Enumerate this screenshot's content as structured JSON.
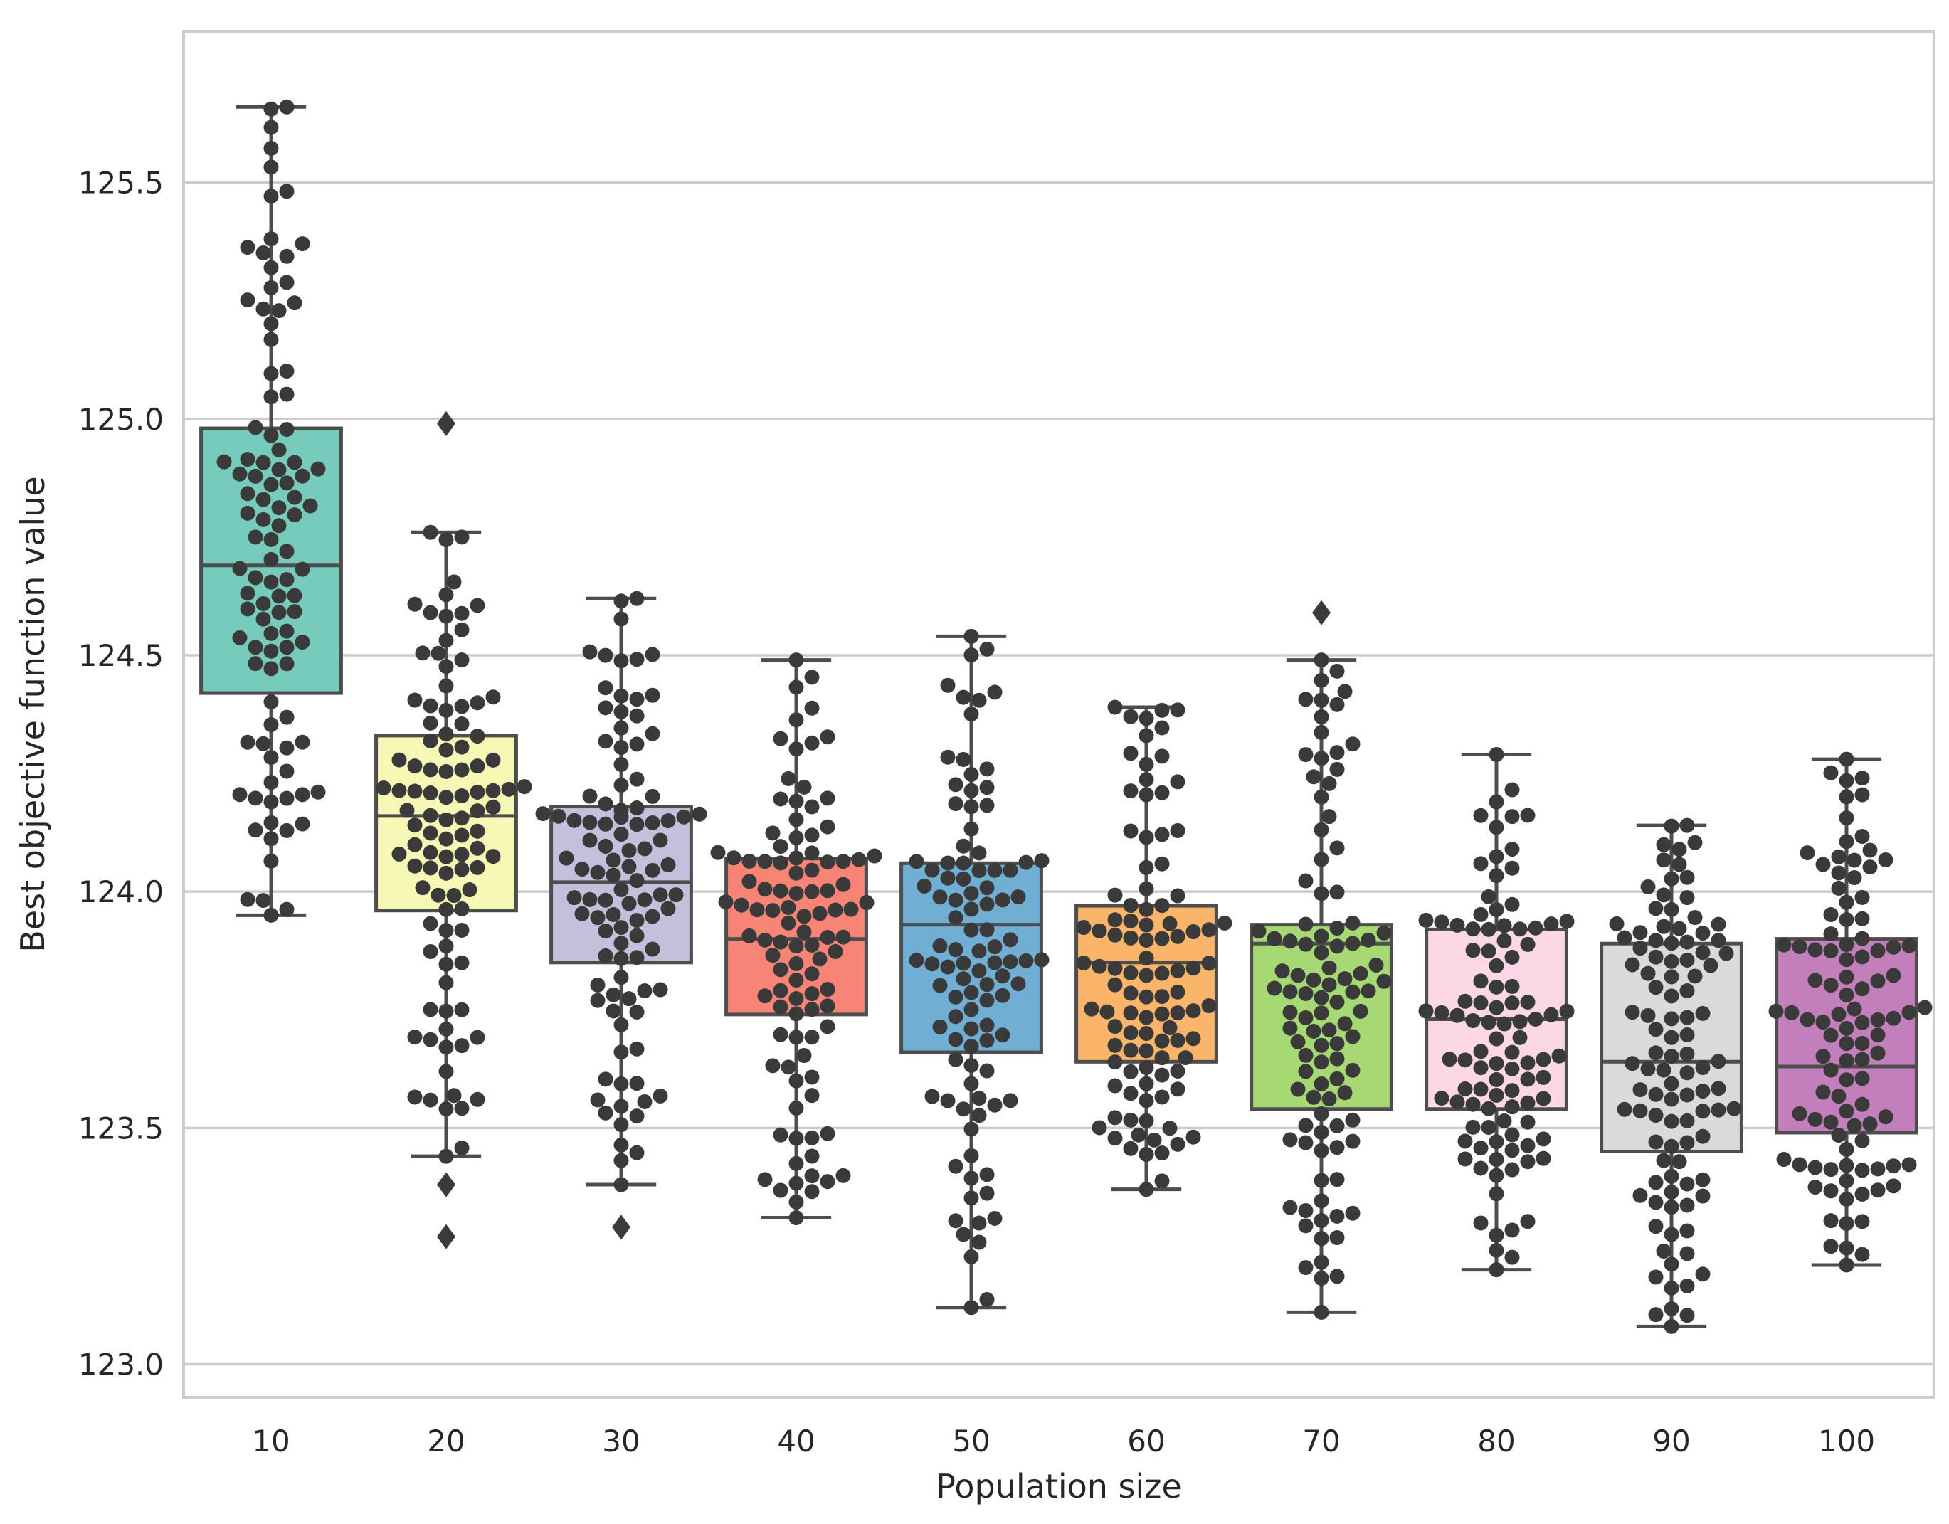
{
  "chart_data": {
    "type": "box",
    "title": "",
    "xlabel": "Population size",
    "ylabel": "Best objective function value",
    "ylim": [
      122.93,
      125.82
    ],
    "yticks": [
      123.0,
      123.5,
      124.0,
      124.5,
      125.0,
      125.5
    ],
    "ytick_labels": [
      "123.0",
      "123.5",
      "124.0",
      "124.5",
      "125.0",
      "125.5"
    ],
    "grid": true,
    "categories": [
      "10",
      "20",
      "30",
      "40",
      "50",
      "60",
      "70",
      "80",
      "90",
      "100"
    ],
    "colors": [
      "#76cbbd",
      "#f8f8b6",
      "#c4bfdb",
      "#f88476",
      "#70aed4",
      "#fbb56a",
      "#a6d874",
      "#fcd8e6",
      "#dadada",
      "#c37fbb"
    ],
    "point_color": "#3a3a3a",
    "series": [
      {
        "name": "10",
        "whisker_low": 123.95,
        "q1": 124.42,
        "median": 124.69,
        "q3": 124.98,
        "whisker_high": 125.66,
        "outliers": []
      },
      {
        "name": "20",
        "whisker_low": 123.44,
        "q1": 123.96,
        "median": 124.16,
        "q3": 124.33,
        "whisker_high": 124.76,
        "outliers": [
          123.27,
          123.38,
          124.99
        ]
      },
      {
        "name": "30",
        "whisker_low": 123.38,
        "q1": 123.85,
        "median": 124.02,
        "q3": 124.18,
        "whisker_high": 124.62,
        "outliers": [
          123.29
        ]
      },
      {
        "name": "40",
        "whisker_low": 123.31,
        "q1": 123.74,
        "median": 123.9,
        "q3": 124.07,
        "whisker_high": 124.49,
        "outliers": []
      },
      {
        "name": "50",
        "whisker_low": 123.12,
        "q1": 123.66,
        "median": 123.93,
        "q3": 124.06,
        "whisker_high": 124.54,
        "outliers": []
      },
      {
        "name": "60",
        "whisker_low": 123.37,
        "q1": 123.64,
        "median": 123.85,
        "q3": 123.97,
        "whisker_high": 124.39,
        "outliers": []
      },
      {
        "name": "70",
        "whisker_low": 123.11,
        "q1": 123.54,
        "median": 123.89,
        "q3": 123.93,
        "whisker_high": 124.49,
        "outliers": [
          124.59
        ]
      },
      {
        "name": "80",
        "whisker_low": 123.2,
        "q1": 123.54,
        "median": 123.73,
        "q3": 123.92,
        "whisker_high": 124.29,
        "outliers": []
      },
      {
        "name": "90",
        "whisker_low": 123.08,
        "q1": 123.45,
        "median": 123.64,
        "q3": 123.89,
        "whisker_high": 124.14,
        "outliers": []
      },
      {
        "name": "100",
        "whisker_low": 123.21,
        "q1": 123.49,
        "median": 123.63,
        "q3": 123.9,
        "whisker_high": 124.28,
        "outliers": []
      }
    ]
  }
}
